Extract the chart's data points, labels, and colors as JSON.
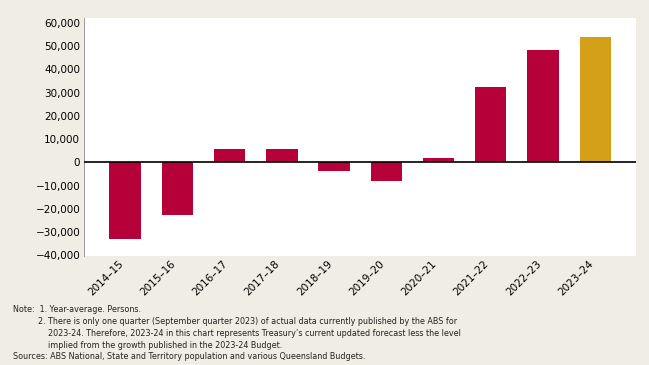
{
  "categories": [
    "2014–15",
    "2015–16",
    "2016–17",
    "2017–18",
    "2018–19",
    "2019–20",
    "2020–21",
    "2021–22",
    "2022–23",
    "2023–24"
  ],
  "values": [
    -33000,
    -22500,
    6000,
    6000,
    -3500,
    -8000,
    2000,
    32500,
    48500,
    54000
  ],
  "bar_colors": [
    "#B5003A",
    "#B5003A",
    "#B5003A",
    "#B5003A",
    "#B5003A",
    "#B5003A",
    "#B5003A",
    "#B5003A",
    "#B5003A",
    "#D4A017"
  ],
  "ylim": [
    -40000,
    62000
  ],
  "yticks": [
    -40000,
    -30000,
    -20000,
    -10000,
    0,
    10000,
    20000,
    30000,
    40000,
    50000,
    60000
  ],
  "plot_bg": "#ffffff",
  "fig_bg": "#f0ede4",
  "note_line1": "Note:  1. Year-average. Persons.",
  "note_line2": "          2. There is only one quarter (September quarter 2023) of actual data currently published by the ABS for",
  "note_line3": "              2023-24. Therefore, 2023-24 in this chart represents Treasury’s current updated forecast less the level",
  "note_line4": "              implied from the growth published in the 2023-24 Budget.",
  "note_line5": "Sources: ABS National, State and Territory population and various Queensland Budgets."
}
